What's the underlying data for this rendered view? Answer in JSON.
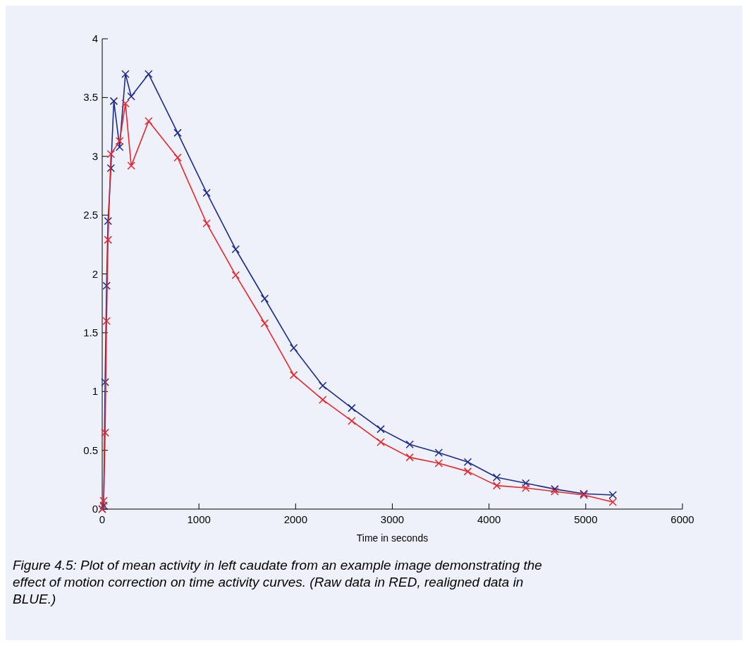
{
  "chart_data": {
    "type": "line",
    "xlabel": "Time in seconds",
    "xlim": [
      0,
      6000
    ],
    "xticks": [
      0,
      1000,
      2000,
      3000,
      4000,
      5000,
      6000
    ],
    "ylim": [
      0,
      4
    ],
    "yticks": [
      0,
      0.5,
      1,
      1.5,
      2,
      2.5,
      3,
      3.5,
      4
    ],
    "grid": false,
    "marker": "cross",
    "line_style": "solid",
    "x": [
      0,
      15,
      30,
      45,
      60,
      90,
      120,
      180,
      240,
      300,
      480,
      780,
      1080,
      1380,
      1680,
      1980,
      2280,
      2580,
      2880,
      3180,
      3480,
      3780,
      4080,
      4380,
      4680,
      4980,
      5280
    ],
    "series": [
      {
        "color": "#e8262b",
        "values": [
          0,
          0.07,
          0.65,
          1.6,
          2.29,
          3.02,
          null,
          3.13,
          3.45,
          2.92,
          3.3,
          2.99,
          2.43,
          1.99,
          1.58,
          1.14,
          0.93,
          0.75,
          0.57,
          0.44,
          0.39,
          0.32,
          0.2,
          0.18,
          0.15,
          0.12,
          0.06
        ]
      },
      {
        "color": "#1c2a8c",
        "values": [
          0,
          0.03,
          1.08,
          1.9,
          2.45,
          2.9,
          3.47,
          3.08,
          3.7,
          3.51,
          3.7,
          3.2,
          2.69,
          2.21,
          1.79,
          1.37,
          1.05,
          0.86,
          0.68,
          0.55,
          0.48,
          0.4,
          0.27,
          0.22,
          0.17,
          0.13,
          0.12
        ]
      }
    ],
    "annotations": [
      "Figure 4.5: Plot of mean activity in left caudate from an example image demonstrating the effect of motion correction on time activity curves.  (Raw data in RED, realigned data in BLUE.)"
    ]
  }
}
